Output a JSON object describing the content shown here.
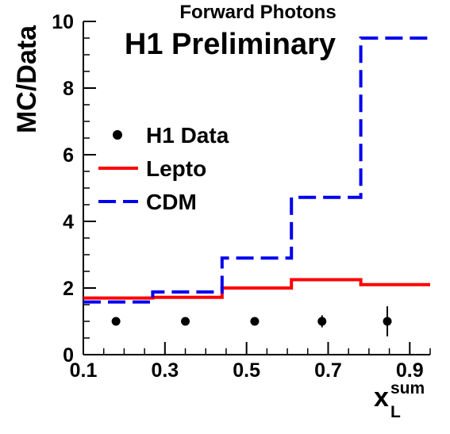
{
  "chart_data": {
    "type": "line",
    "title": "Forward Photons",
    "watermark": "H1 Preliminary",
    "ylabel": "MC/Data",
    "xlabel_main": "x",
    "xlabel_sup": "sum",
    "xlabel_sub": "L",
    "xlim": [
      0.1,
      0.95
    ],
    "ylim": [
      0,
      10
    ],
    "x_ticks": [
      0.1,
      0.3,
      0.5,
      0.7,
      0.9
    ],
    "x_tick_labels": [
      "0.1",
      "0.3",
      "0.5",
      "0.7",
      "0.9"
    ],
    "y_ticks": [
      0,
      2,
      4,
      6,
      8,
      10
    ],
    "y_tick_labels": [
      "0",
      "2",
      "4",
      "6",
      "8",
      "10"
    ],
    "grid": false,
    "legend_position": "left-middle",
    "bin_edges": [
      0.1,
      0.27,
      0.44,
      0.61,
      0.78,
      0.95
    ],
    "series": [
      {
        "name": "H1 Data",
        "style": "points",
        "color": "#000000",
        "x": [
          0.18,
          0.35,
          0.52,
          0.685,
          0.845
        ],
        "y": [
          1.0,
          1.0,
          1.0,
          1.0,
          1.0
        ],
        "yerr": [
          0.05,
          0.05,
          0.08,
          0.18,
          0.45
        ]
      },
      {
        "name": "Lepto",
        "style": "step-solid",
        "color": "#ff0000",
        "values": [
          1.7,
          1.72,
          2.0,
          2.25,
          2.1
        ]
      },
      {
        "name": "CDM",
        "style": "step-dashed",
        "color": "#0000ee",
        "values": [
          1.58,
          1.88,
          2.9,
          4.72,
          9.5
        ]
      }
    ]
  }
}
